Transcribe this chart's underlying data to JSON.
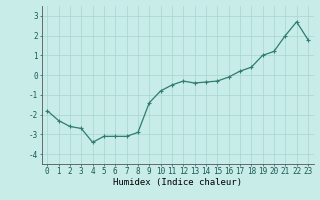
{
  "x": [
    0,
    1,
    2,
    3,
    4,
    5,
    6,
    7,
    8,
    9,
    10,
    11,
    12,
    13,
    14,
    15,
    16,
    17,
    18,
    19,
    20,
    21,
    22,
    23
  ],
  "y": [
    -1.8,
    -2.3,
    -2.6,
    -2.7,
    -3.4,
    -3.1,
    -3.1,
    -3.1,
    -2.9,
    -1.4,
    -0.8,
    -0.5,
    -0.3,
    -0.4,
    -0.35,
    -0.3,
    -0.1,
    0.2,
    0.4,
    1.0,
    1.2,
    2.0,
    2.7,
    1.8
  ],
  "line_color": "#2e7d6e",
  "marker": "+",
  "marker_size": 3,
  "bg_color": "#c8ece8",
  "grid_color": "#a8d4cf",
  "xlabel": "Humidex (Indice chaleur)",
  "xlim": [
    -0.5,
    23.5
  ],
  "ylim": [
    -4.5,
    3.5
  ],
  "yticks": [
    -4,
    -3,
    -2,
    -1,
    0,
    1,
    2,
    3
  ],
  "xticks": [
    0,
    1,
    2,
    3,
    4,
    5,
    6,
    7,
    8,
    9,
    10,
    11,
    12,
    13,
    14,
    15,
    16,
    17,
    18,
    19,
    20,
    21,
    22,
    23
  ],
  "tick_fontsize": 5.5,
  "xlabel_fontsize": 6.5,
  "line_width": 0.9
}
